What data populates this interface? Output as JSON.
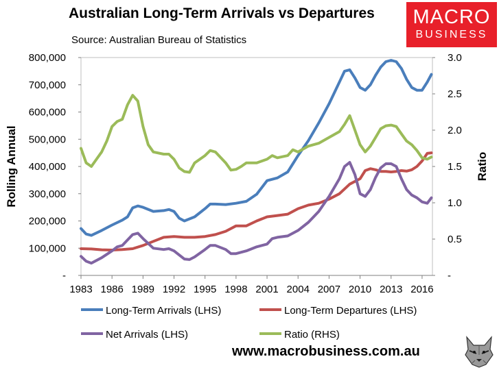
{
  "header": {
    "title": "Australian Long-Term Arrivals vs Departures",
    "subtitle": "Source: Australian Bureau of Statistics"
  },
  "logo": {
    "line1": "MACRO",
    "line2": "BUSINESS",
    "color": "#e8202a"
  },
  "footer": {
    "url": "www.macrobusiness.com.au",
    "mascot_icon": "wolf-icon"
  },
  "chart_data": {
    "type": "line",
    "title": "Australian Long-Term Arrivals vs Departures",
    "subtitle": "Source: Australian Bureau of Statistics",
    "ylabel": "Rolling Annual",
    "y2label": "Ratio",
    "ylim": [
      0,
      800000
    ],
    "y2lim": [
      0,
      3.0
    ],
    "xlim": [
      1983,
      2017
    ],
    "x_ticks": [
      "1983",
      "1986",
      "1989",
      "1992",
      "1995",
      "1998",
      "2001",
      "2004",
      "2007",
      "2010",
      "2013",
      "2016"
    ],
    "y_ticks": [
      "-",
      "100,000",
      "200,000",
      "300,000",
      "400,000",
      "500,000",
      "600,000",
      "700,000",
      "800,000"
    ],
    "y2_ticks": [
      "-",
      "0.5",
      "1.0",
      "1.5",
      "2.0",
      "2.5",
      "3.0"
    ],
    "grid": false,
    "legend_placement": "bottom",
    "series": [
      {
        "name": "Long-Term Arrivals (LHS)",
        "axis": "left",
        "color": "#4a7ebb",
        "x": [
          1983,
          1983.5,
          1984,
          1985,
          1986,
          1987,
          1987.5,
          1988,
          1988.5,
          1989,
          1990,
          1991,
          1991.5,
          1992,
          1992.5,
          1993,
          1994,
          1995,
          1995.5,
          1996,
          1997,
          1998,
          1999,
          2000,
          2001,
          2002,
          2003,
          2004,
          2005,
          2006,
          2007,
          2008,
          2008.5,
          2009,
          2009.5,
          2010,
          2010.5,
          2011,
          2011.5,
          2012,
          2012.5,
          2013,
          2013.5,
          2014,
          2014.5,
          2015,
          2015.5,
          2016,
          2016.5,
          2016.9
        ],
        "y": [
          172000,
          152000,
          147000,
          165000,
          185000,
          203000,
          215000,
          248000,
          255000,
          250000,
          235000,
          238000,
          242000,
          235000,
          210000,
          200000,
          215000,
          245000,
          262000,
          262000,
          260000,
          265000,
          272000,
          298000,
          348000,
          358000,
          380000,
          440000,
          495000,
          560000,
          630000,
          710000,
          750000,
          755000,
          725000,
          690000,
          680000,
          700000,
          735000,
          765000,
          785000,
          790000,
          785000,
          760000,
          720000,
          690000,
          680000,
          680000,
          710000,
          738000
        ]
      },
      {
        "name": "Long-Term Departures (LHS)",
        "axis": "left",
        "color": "#c0504d",
        "x": [
          1983,
          1984,
          1985,
          1986,
          1987,
          1988,
          1989,
          1990,
          1991,
          1992,
          1993,
          1994,
          1995,
          1996,
          1997,
          1998,
          1999,
          2000,
          2001,
          2002,
          2003,
          2004,
          2005,
          2006,
          2007,
          2008,
          2009,
          2010,
          2010.5,
          2011,
          2011.5,
          2012,
          2012.5,
          2013,
          2013.5,
          2014,
          2014.5,
          2015,
          2015.5,
          2016,
          2016.5,
          2016.9
        ],
        "y": [
          98000,
          97000,
          94000,
          93000,
          95000,
          98000,
          110000,
          125000,
          140000,
          143000,
          140000,
          140000,
          143000,
          150000,
          162000,
          182000,
          182000,
          200000,
          215000,
          220000,
          225000,
          245000,
          258000,
          265000,
          280000,
          300000,
          335000,
          355000,
          385000,
          392000,
          388000,
          382000,
          382000,
          380000,
          382000,
          385000,
          383000,
          388000,
          400000,
          420000,
          448000,
          450000
        ]
      },
      {
        "name": "Net Arrivals (LHS)",
        "axis": "left",
        "color": "#8064a2",
        "x": [
          1983,
          1983.5,
          1984,
          1985,
          1986,
          1986.5,
          1987,
          1987.5,
          1988,
          1988.5,
          1989,
          1990,
          1991,
          1991.5,
          1992,
          1992.5,
          1993,
          1993.5,
          1994,
          1995,
          1995.5,
          1996,
          1997,
          1997.5,
          1998,
          1999,
          2000,
          2001,
          2001.5,
          2002,
          2003,
          2004,
          2005,
          2006,
          2007,
          2008,
          2008.5,
          2009,
          2009.5,
          2010,
          2010.5,
          2011,
          2011.5,
          2012,
          2012.5,
          2013,
          2013.5,
          2014,
          2014.5,
          2015,
          2015.5,
          2016,
          2016.5,
          2016.9
        ],
        "y": [
          70000,
          52000,
          45000,
          65000,
          90000,
          105000,
          110000,
          130000,
          150000,
          155000,
          135000,
          100000,
          95000,
          98000,
          90000,
          75000,
          60000,
          58000,
          68000,
          95000,
          110000,
          110000,
          95000,
          80000,
          80000,
          90000,
          105000,
          115000,
          135000,
          140000,
          145000,
          165000,
          195000,
          235000,
          290000,
          355000,
          400000,
          415000,
          370000,
          300000,
          290000,
          315000,
          360000,
          395000,
          410000,
          410000,
          400000,
          355000,
          315000,
          295000,
          285000,
          270000,
          265000,
          285000
        ]
      },
      {
        "name": "Ratio (RHS)",
        "axis": "right",
        "color": "#9bbb59",
        "x": [
          1983,
          1983.5,
          1984,
          1984.5,
          1985,
          1985.5,
          1986,
          1986.5,
          1987,
          1987.5,
          1988,
          1988.5,
          1989,
          1989.5,
          1990,
          1991,
          1991.5,
          1992,
          1992.5,
          1993,
          1993.5,
          1994,
          1995,
          1995.5,
          1996,
          1997,
          1997.5,
          1998,
          1998.5,
          1999,
          2000,
          2001,
          2001.5,
          2002,
          2003,
          2003.5,
          2004,
          2005,
          2006,
          2007,
          2008,
          2008.5,
          2009,
          2009.5,
          2010,
          2010.5,
          2011,
          2011.5,
          2012,
          2012.5,
          2013,
          2013.5,
          2014,
          2014.5,
          2015,
          2015.5,
          2016,
          2016.5,
          2016.9
        ],
        "y": [
          1.75,
          1.55,
          1.5,
          1.6,
          1.7,
          1.85,
          2.05,
          2.12,
          2.15,
          2.35,
          2.48,
          2.4,
          2.05,
          1.8,
          1.7,
          1.67,
          1.67,
          1.6,
          1.48,
          1.43,
          1.42,
          1.55,
          1.65,
          1.72,
          1.7,
          1.55,
          1.45,
          1.46,
          1.5,
          1.55,
          1.55,
          1.6,
          1.65,
          1.62,
          1.65,
          1.73,
          1.7,
          1.78,
          1.82,
          1.9,
          1.98,
          2.08,
          2.2,
          2.0,
          1.8,
          1.7,
          1.78,
          1.9,
          2.02,
          2.06,
          2.07,
          2.05,
          1.95,
          1.85,
          1.8,
          1.72,
          1.62,
          1.6,
          1.63
        ]
      }
    ]
  }
}
